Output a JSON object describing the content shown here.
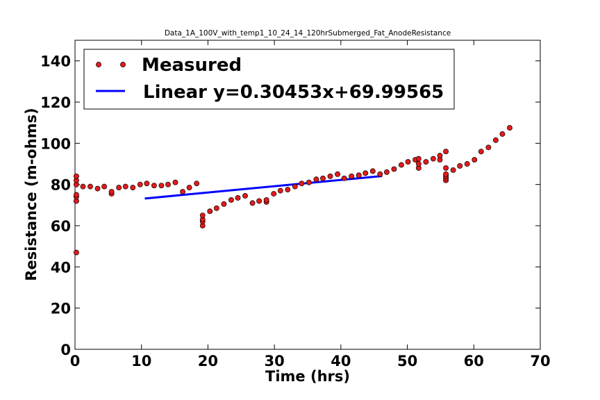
{
  "chart_data": {
    "type": "scatter",
    "title": "Data_1A_100V_with_temp1_10_24_14_120hrSubmerged_Fat_AnodeResistance",
    "xlabel": "Time (hrs)",
    "ylabel": "Resistance (m-ohms)",
    "xlim": [
      0,
      70
    ],
    "ylim": [
      0,
      150
    ],
    "xticks": [
      0,
      10,
      20,
      30,
      40,
      50,
      60,
      70
    ],
    "yticks": [
      0,
      20,
      40,
      60,
      80,
      100,
      120,
      140
    ],
    "grid": false,
    "legend_position": "top-left",
    "series": [
      {
        "name": "Measured",
        "kind": "scatter",
        "color": "#e31a1c",
        "edge_color": "#000000",
        "x": [
          0.2,
          0.2,
          0.2,
          0.2,
          0.2,
          0.2,
          0.2,
          1.2,
          2.3,
          3.4,
          4.4,
          5.5,
          5.5,
          6.6,
          7.6,
          8.7,
          9.8,
          10.8,
          11.9,
          13.0,
          14.0,
          15.1,
          16.2,
          17.2,
          18.3,
          19.2,
          19.2,
          19.2,
          19.2,
          20.3,
          21.3,
          22.4,
          23.5,
          24.5,
          25.6,
          26.7,
          27.7,
          28.8,
          28.8,
          29.9,
          30.9,
          32.0,
          33.1,
          34.1,
          35.2,
          36.3,
          37.3,
          38.4,
          39.5,
          40.5,
          41.6,
          42.7,
          43.7,
          44.8,
          45.9,
          46.9,
          48.0,
          49.1,
          50.1,
          51.2,
          51.7,
          51.7,
          51.7,
          52.8,
          53.9,
          54.9,
          54.9,
          55.8,
          55.8,
          55.8,
          55.8,
          55.8,
          55.8,
          56.9,
          57.9,
          59.0,
          60.1,
          61.1,
          62.2,
          63.3,
          64.3,
          65.4
        ],
        "y": [
          47,
          72,
          74,
          75,
          80,
          82,
          84,
          79,
          79,
          78,
          79,
          75.5,
          76.5,
          78.5,
          79,
          78.5,
          80,
          80.5,
          79.5,
          79.5,
          80,
          81,
          76.5,
          78.5,
          80.5,
          60,
          62,
          63,
          65,
          67,
          68.5,
          70.5,
          72.5,
          73.5,
          74.5,
          71,
          72,
          71.5,
          72.5,
          75.5,
          77,
          77.5,
          79,
          80.5,
          81,
          82.5,
          83,
          84,
          85,
          83,
          84,
          84.5,
          85.5,
          86.5,
          85,
          86,
          87.5,
          89.5,
          91,
          92,
          88,
          90,
          92.5,
          91,
          92.5,
          92,
          94,
          82,
          83,
          84,
          85,
          88,
          96,
          87,
          89,
          90,
          92,
          96,
          98,
          101.5,
          104.5,
          107.5
        ]
      },
      {
        "name": "Linear y=0.30453x+69.99565",
        "kind": "line",
        "color": "#0000ff",
        "x": [
          10.5,
          46.2
        ],
        "y": [
          73.2,
          84.1
        ]
      }
    ]
  }
}
